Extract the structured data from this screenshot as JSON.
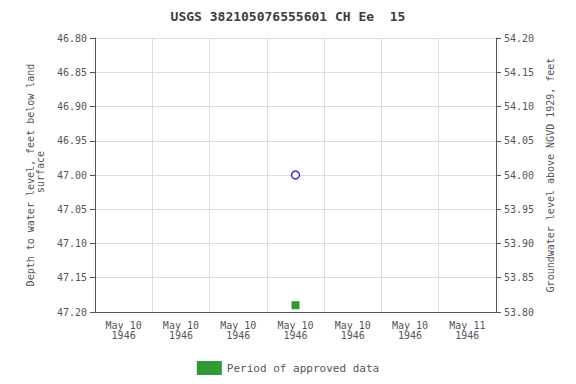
{
  "chart_data": {
    "type": "scatter",
    "title": "USGS 382105076555601 CH Ee  15",
    "ylabel": "Depth to water level, feet below land\n surface",
    "y2label": "Groundwater level above NGVD 1929, feet",
    "categories": [
      "May 10\n1946",
      "May 10\n1946",
      "May 10\n1946",
      "May 10\n1946",
      "May 10\n1946",
      "May 10\n1946",
      "May 11\n1946"
    ],
    "series": [
      {
        "color": "#0000cc",
        "marker": "open_circle",
        "values": [
          null,
          null,
          null,
          47.0,
          null,
          null,
          null
        ]
      },
      {
        "name": "Period of approved data",
        "color": "#008000",
        "marker": "square",
        "values": [
          null,
          null,
          null,
          47.19,
          null,
          null,
          null
        ]
      }
    ],
    "ylim": [
      47.2,
      46.8
    ],
    "yticks": [
      {
        "value": 46.8,
        "label": "46.80"
      },
      {
        "value": 46.85,
        "label": "46.85"
      },
      {
        "value": 46.9,
        "label": "46.90"
      },
      {
        "value": 46.95,
        "label": "46.95"
      },
      {
        "value": 47.0,
        "label": "47.00"
      },
      {
        "value": 47.05,
        "label": "47.05"
      },
      {
        "value": 47.1,
        "label": "47.10"
      },
      {
        "value": 47.15,
        "label": "47.15"
      },
      {
        "value": 47.2,
        "label": "47.20"
      }
    ],
    "y2lim": [
      53.8,
      54.2
    ],
    "y2ticks": [
      {
        "value": 54.2,
        "label": "54.20"
      },
      {
        "value": 54.15,
        "label": "54.15"
      },
      {
        "value": 54.1,
        "label": "54.10"
      },
      {
        "value": 54.05,
        "label": "54.05"
      },
      {
        "value": 54.0,
        "label": "54.00"
      },
      {
        "value": 53.95,
        "label": "53.95"
      },
      {
        "value": 53.9,
        "label": "53.90"
      },
      {
        "value": 53.85,
        "label": "53.85"
      },
      {
        "value": 53.8,
        "label": "53.80"
      }
    ],
    "grid": true,
    "legend": "bottom"
  }
}
